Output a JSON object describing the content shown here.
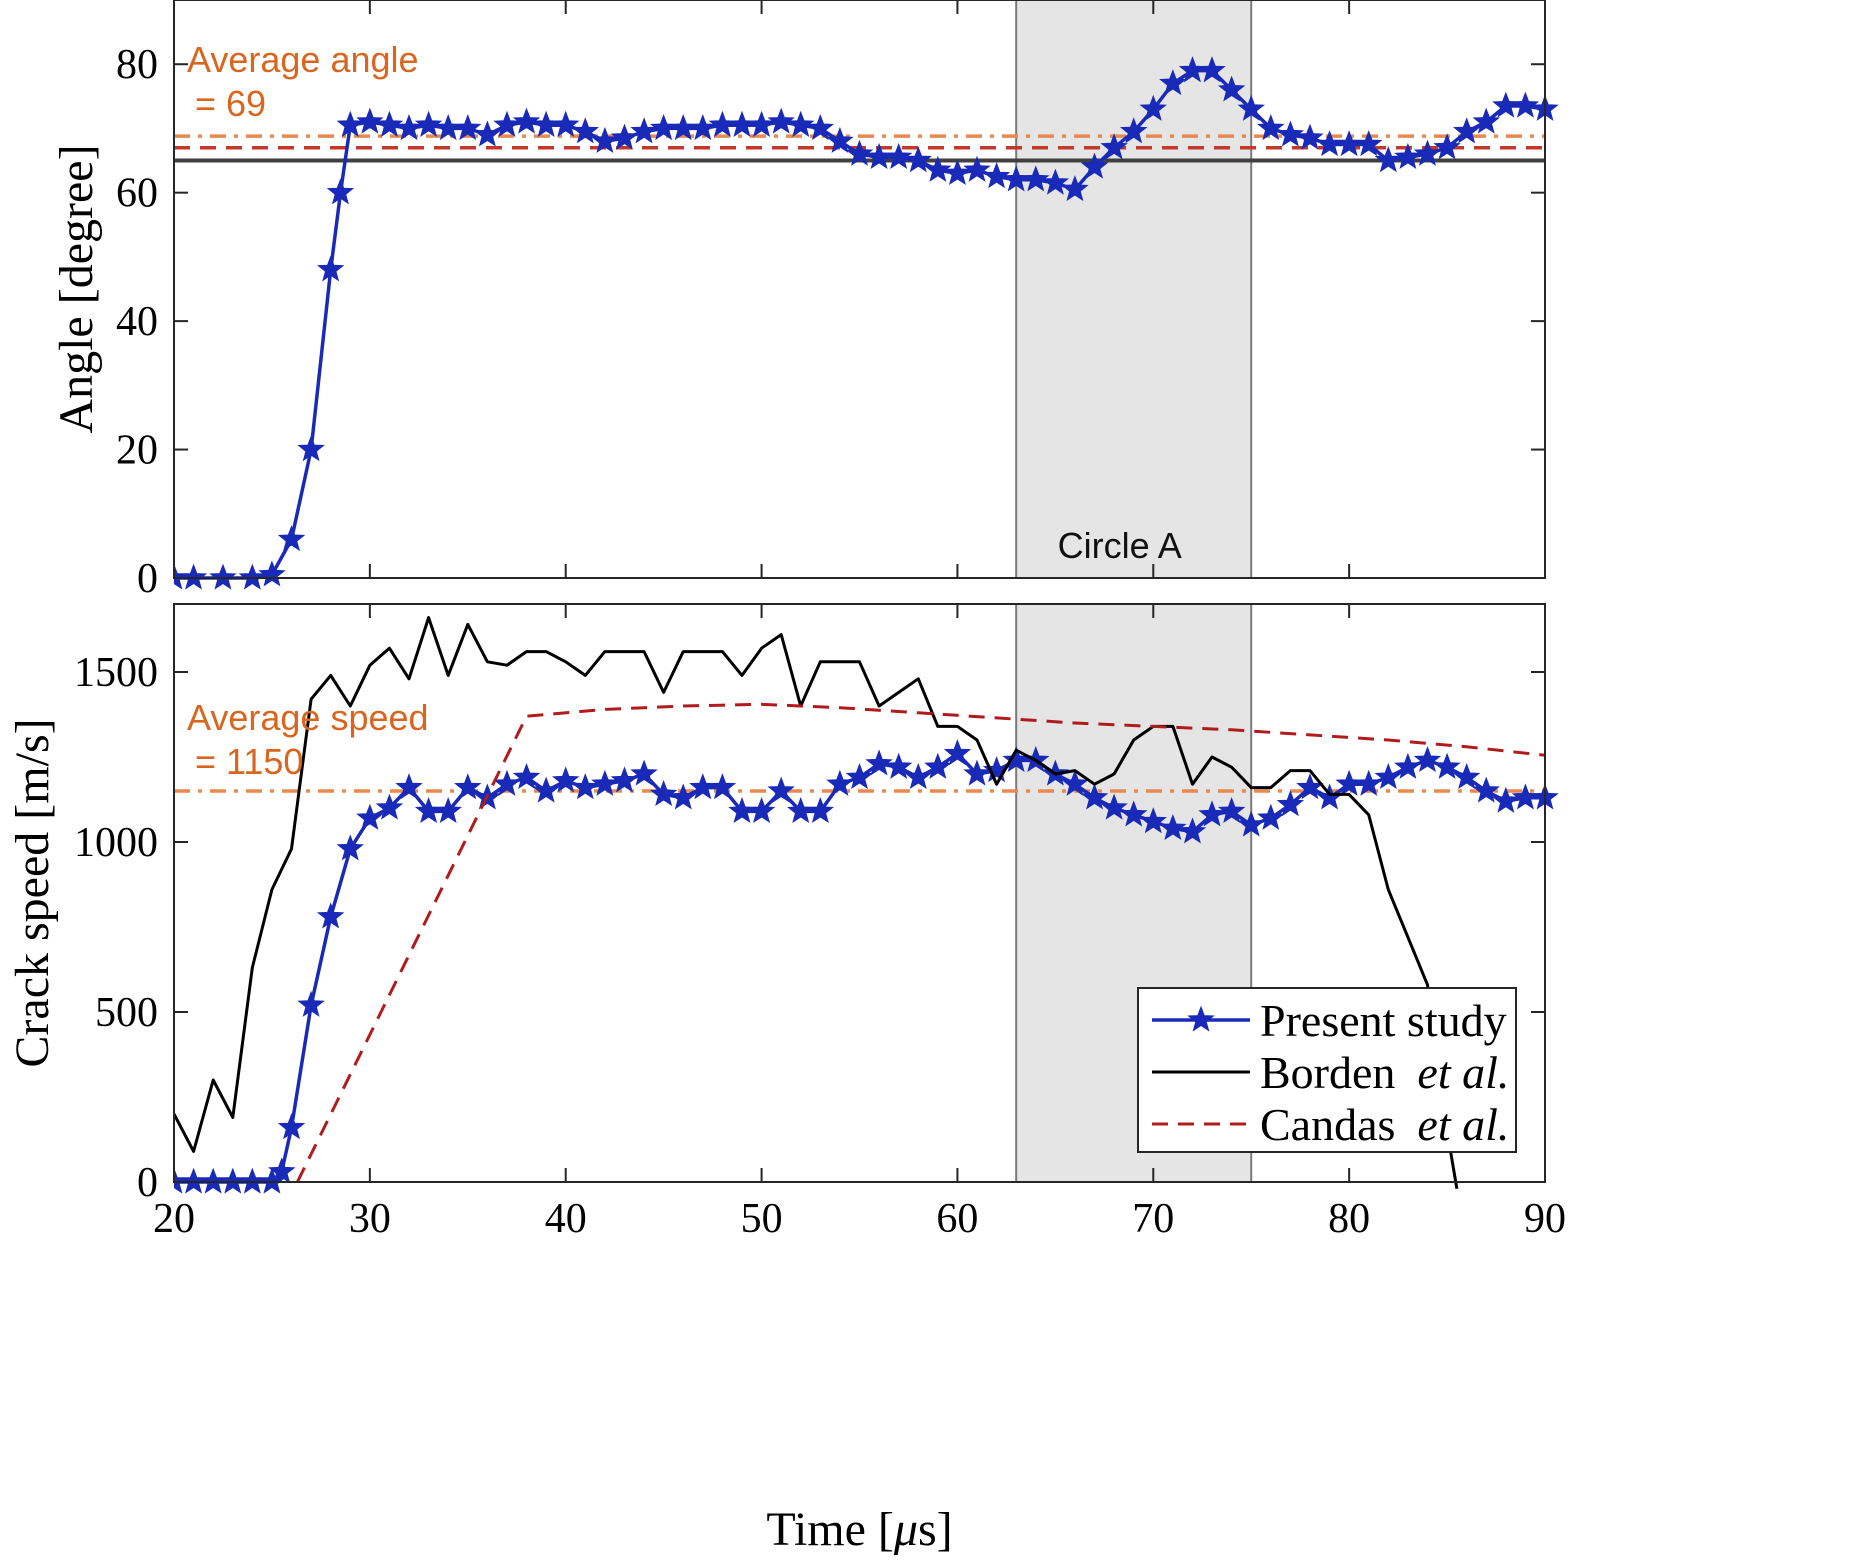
{
  "chart_data": [
    {
      "type": "line",
      "ylabel": "Angle [degree]",
      "xlim": [
        20,
        90
      ],
      "ylim": [
        0,
        90
      ],
      "yticks": [
        0,
        20,
        40,
        60,
        80
      ],
      "shaded_region": {
        "x": [
          63,
          75
        ],
        "label": "Circle A"
      },
      "annotations": {
        "average_line1": "Average angle",
        "average_line2": "= 69"
      },
      "hlines": [
        {
          "y": 65,
          "style": "solid",
          "color": "#404040"
        },
        {
          "y": 67,
          "style": "dashed",
          "color": "#c0392b"
        },
        {
          "y": 68.8,
          "style": "dashdot",
          "color": "#e8894f"
        }
      ],
      "series": [
        {
          "name": "Present study",
          "color": "#1a2ab8",
          "x": [
            20,
            21,
            22.5,
            24,
            25,
            26,
            27,
            28,
            28.5,
            29,
            30,
            31,
            32,
            33,
            34,
            35,
            36,
            37,
            38,
            39,
            40,
            41,
            42,
            43,
            44,
            45,
            46,
            47,
            48,
            49,
            50,
            51,
            52,
            53,
            54,
            55,
            56,
            57,
            58,
            59,
            60,
            61,
            62,
            63,
            64,
            65,
            66,
            67,
            68,
            69,
            70,
            71,
            72,
            73,
            74,
            75,
            76,
            77,
            78,
            79,
            80,
            81,
            82,
            83,
            84,
            85,
            86,
            87,
            88,
            89,
            90
          ],
          "y": [
            0,
            0,
            0,
            0,
            0.5,
            6,
            20,
            48,
            60,
            70.5,
            71,
            70.5,
            70,
            70.5,
            70,
            70,
            69,
            70.5,
            71,
            70.5,
            70.5,
            69.5,
            68,
            68.5,
            69.5,
            70,
            70,
            70,
            70.5,
            70.5,
            70.5,
            71,
            70.5,
            70,
            68,
            66,
            65.5,
            65.5,
            65,
            63.5,
            63,
            63.5,
            62.5,
            62,
            62,
            61.5,
            60.5,
            64,
            67,
            69.5,
            73,
            77,
            79,
            79,
            76,
            73,
            70,
            69,
            68.5,
            67.5,
            67.5,
            67.5,
            65,
            65.5,
            66,
            67,
            69.5,
            71,
            73.5,
            73.5,
            73
          ]
        }
      ]
    },
    {
      "type": "line",
      "xlabel_prefix": "Time [",
      "xlabel_mu": "μ",
      "xlabel_suffix": "s]",
      "ylabel": "Crack speed [m/s]",
      "xlim": [
        20,
        90
      ],
      "ylim": [
        0,
        1700
      ],
      "xticks": [
        20,
        30,
        40,
        50,
        60,
        70,
        80,
        90
      ],
      "yticks": [
        0,
        500,
        1000,
        1500
      ],
      "shaded_region": {
        "x": [
          63,
          75
        ]
      },
      "annotations": {
        "average_line1": "Average speed",
        "average_line2": "= 1150"
      },
      "hlines": [
        {
          "y": 1150,
          "style": "dashdot",
          "color": "#e8894f"
        }
      ],
      "series": [
        {
          "name": "Present study",
          "color": "#1a2ab8",
          "x": [
            20,
            21,
            22,
            23,
            24,
            25,
            25.5,
            26,
            27,
            28,
            29,
            30,
            31,
            32,
            33,
            34,
            35,
            36,
            37,
            38,
            39,
            40,
            41,
            42,
            43,
            44,
            45,
            46,
            47,
            48,
            49,
            50,
            51,
            52,
            53,
            54,
            55,
            56,
            57,
            58,
            59,
            60,
            61,
            62,
            63,
            64,
            65,
            66,
            67,
            68,
            69,
            70,
            71,
            72,
            73,
            74,
            75,
            76,
            77,
            78,
            79,
            80,
            81,
            82,
            83,
            84,
            85,
            86,
            87,
            88,
            89,
            90
          ],
          "y": [
            0,
            0,
            0,
            0,
            0,
            0,
            30,
            160,
            520,
            780,
            980,
            1070,
            1100,
            1160,
            1090,
            1090,
            1160,
            1130,
            1170,
            1190,
            1150,
            1180,
            1160,
            1170,
            1180,
            1200,
            1140,
            1130,
            1160,
            1160,
            1090,
            1090,
            1150,
            1090,
            1090,
            1170,
            1190,
            1230,
            1220,
            1190,
            1220,
            1260,
            1200,
            1210,
            1240,
            1240,
            1200,
            1170,
            1130,
            1100,
            1080,
            1060,
            1040,
            1030,
            1080,
            1090,
            1050,
            1070,
            1110,
            1160,
            1130,
            1170,
            1170,
            1190,
            1220,
            1240,
            1220,
            1190,
            1150,
            1120,
            1130,
            1130
          ]
        },
        {
          "name_prefix": "Borden",
          "name_suffix": "et al.",
          "color": "#000000",
          "x": [
            20,
            21,
            22,
            23,
            24,
            25,
            26,
            27,
            28,
            29,
            30,
            31,
            32,
            33,
            34,
            35,
            36,
            37,
            38,
            39,
            40,
            41,
            42,
            43,
            44,
            45,
            46,
            47,
            48,
            49,
            50,
            51,
            52,
            53,
            54,
            55,
            56,
            57,
            58,
            59,
            60,
            61,
            62,
            63,
            64,
            65,
            66,
            67,
            68,
            69,
            70,
            71,
            72,
            73,
            74,
            75,
            76,
            77,
            78,
            79,
            80,
            81,
            82,
            83,
            84,
            85,
            85.5
          ],
          "y": [
            200,
            90,
            300,
            190,
            630,
            860,
            980,
            1420,
            1490,
            1400,
            1520,
            1570,
            1480,
            1660,
            1490,
            1640,
            1530,
            1520,
            1560,
            1560,
            1530,
            1490,
            1560,
            1560,
            1560,
            1440,
            1560,
            1560,
            1560,
            1490,
            1570,
            1610,
            1400,
            1530,
            1530,
            1530,
            1400,
            1440,
            1480,
            1340,
            1340,
            1300,
            1170,
            1270,
            1240,
            1200,
            1210,
            1170,
            1200,
            1300,
            1340,
            1340,
            1170,
            1250,
            1220,
            1160,
            1160,
            1210,
            1210,
            1140,
            1140,
            1080,
            860,
            720,
            580,
            150,
            -20
          ]
        },
        {
          "name_prefix": "Candas",
          "name_suffix": "et al.",
          "color": "#b01c1c",
          "x": [
            26.3,
            38,
            42,
            46,
            50,
            54,
            58,
            62,
            66,
            70,
            74,
            78,
            82,
            86,
            90
          ],
          "y": [
            0,
            1370,
            1390,
            1400,
            1405,
            1395,
            1380,
            1365,
            1350,
            1340,
            1330,
            1315,
            1300,
            1280,
            1255
          ]
        }
      ]
    }
  ]
}
